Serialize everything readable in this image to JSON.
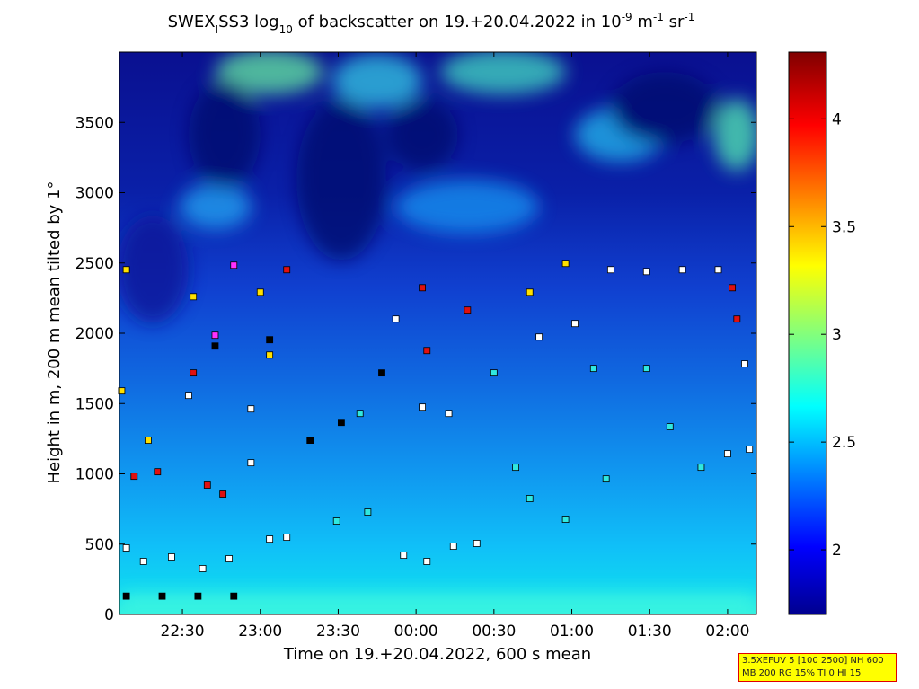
{
  "chart_data": {
    "type": "scatter",
    "title_parts": [
      "SWEX",
      "I",
      "SS3 log",
      "10",
      " of backscatter on 19.+20.04.2022 in 10",
      "-9",
      " m",
      "-1",
      " sr",
      "-1"
    ],
    "x_label": "Time on 19.+20.04.2022, 600 s mean",
    "y_label": "Height in m, 200 m mean tilted by 1°",
    "xlim": [
      22.096,
      26.185
    ],
    "xticks": [
      {
        "value": 22.5,
        "label": "22:30"
      },
      {
        "value": 23,
        "label": "23:00"
      },
      {
        "value": 23.5,
        "label": "23:30"
      },
      {
        "value": 24,
        "label": "00:00"
      },
      {
        "value": 24.5,
        "label": "00:30"
      },
      {
        "value": 25,
        "label": "01:00"
      },
      {
        "value": 25.5,
        "label": "01:30"
      },
      {
        "value": 26,
        "label": "02:00"
      }
    ],
    "ylim": [
      0,
      4000
    ],
    "yticks": [
      0,
      500,
      1000,
      1500,
      2000,
      2500,
      3000,
      3500
    ],
    "colorbar": {
      "lim": [
        1.7,
        4.31
      ],
      "ticks": [
        2,
        2.5,
        3,
        3.5,
        4
      ]
    },
    "info": [
      "3.5XEFUV 5 [100 2500] NH 600",
      "MB 200 RG 15% TI 0 HI 15"
    ],
    "series": [
      {
        "color": "#000000",
        "x": [
          22.14,
          22.37,
          22.6,
          22.83,
          23.06,
          22.71,
          23.32,
          23.78,
          23.52
        ],
        "values": [
          130,
          130,
          130,
          130,
          1954,
          1909,
          1239,
          1718,
          1366
        ]
      },
      {
        "color": "#ffffff",
        "x": [
          22.14,
          22.25,
          22.43,
          22.63,
          22.8,
          22.94,
          23.06,
          23.17,
          23.92,
          24.07,
          24.24,
          24.39,
          24.04,
          24.21,
          23.87,
          24.79,
          25.02,
          25.25,
          25.48,
          25.71,
          25.94,
          26.0,
          26.14,
          26.11,
          22.54,
          22.94
        ],
        "values": [
          473,
          377,
          409,
          326,
          396,
          1079,
          536,
          549,
          421,
          377,
          485,
          505,
          1475,
          1430,
          2101,
          1973,
          2069,
          2452,
          2439,
          2452,
          2452,
          1143,
          1175,
          1782,
          1558,
          1462
        ]
      },
      {
        "color": "#e01010",
        "x": [
          22.19,
          22.34,
          22.66,
          22.76,
          22.57,
          23.17,
          24.04,
          24.33,
          24.07,
          26.03,
          26.06
        ],
        "values": [
          983,
          1015,
          920,
          856,
          1718,
          2452,
          2324,
          2165,
          1877,
          2324,
          2101
        ]
      },
      {
        "color": "#ffe000",
        "x": [
          22.14,
          22.11,
          22.28,
          22.57,
          23.0,
          24.96,
          24.73,
          23.06
        ],
        "values": [
          2452,
          1590,
          1239,
          2260,
          2292,
          2497,
          2292,
          1845
        ]
      },
      {
        "color": "#ff30ff",
        "x": [
          22.83,
          22.71
        ],
        "values": [
          2484,
          1986
        ]
      },
      {
        "color": "#30e8e0",
        "x": [
          23.49,
          23.69,
          24.64,
          24.73,
          24.96,
          25.22,
          25.63,
          25.83,
          25.48,
          25.14,
          23.64,
          24.5
        ],
        "values": [
          664,
          728,
          1047,
          824,
          677,
          964,
          1335,
          1047,
          1750,
          1750,
          1430,
          1718
        ]
      }
    ]
  }
}
